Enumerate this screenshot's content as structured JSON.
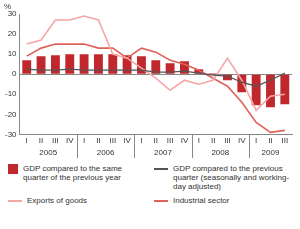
{
  "chart_data": {
    "type": "bar",
    "y_label": "%",
    "groups": [
      {
        "label": "2005",
        "categories": [
          "I",
          "II",
          "III",
          "IV"
        ]
      },
      {
        "label": "2006",
        "categories": [
          "I",
          "II",
          "III",
          "IV"
        ]
      },
      {
        "label": "2007",
        "categories": [
          "I",
          "II",
          "III",
          "IV"
        ]
      },
      {
        "label": "2008",
        "categories": [
          "I",
          "II",
          "III",
          "IV"
        ]
      },
      {
        "label": "2009",
        "categories": [
          "I",
          "II",
          "III"
        ]
      }
    ],
    "ylim": [
      -30,
      30
    ],
    "yticks": [
      -30,
      -20,
      -10,
      0,
      10,
      20,
      30
    ],
    "grid": false,
    "legend": "bottom",
    "series": [
      {
        "name": "GDP compared to the same quarter of the previous year",
        "type": "bar",
        "color": "#c0282d",
        "values": [
          7,
          9,
          9.5,
          10,
          10,
          10,
          10,
          9.5,
          9,
          7,
          5.5,
          6.5,
          2.5,
          0.5,
          -3,
          -9,
          -15.5,
          -16.5,
          -15
        ]
      },
      {
        "name": "GDP compared to the previous quarter (seasonally and working-day adjusted)",
        "type": "line",
        "color": "#555555",
        "values": [
          2.5,
          2,
          2,
          2.5,
          2,
          2,
          2,
          2,
          2,
          1,
          1,
          1.5,
          0.5,
          -0.5,
          -1,
          -4,
          -6,
          -3,
          0.5
        ]
      },
      {
        "name": "Exports of goods",
        "type": "line",
        "color": "#f4a7a7",
        "values": [
          15,
          17,
          27,
          27,
          29,
          27,
          10,
          8,
          3,
          -2,
          -8,
          -3,
          -5,
          -3,
          8,
          -3,
          -18,
          -11,
          -10
        ]
      },
      {
        "name": "Industrial sector",
        "type": "line",
        "color": "#e0605a",
        "values": [
          9,
          13,
          15,
          15,
          15,
          13,
          13,
          8,
          13,
          11,
          7,
          5,
          2,
          -2,
          -6,
          -14,
          -24,
          -29,
          -28
        ]
      }
    ]
  }
}
